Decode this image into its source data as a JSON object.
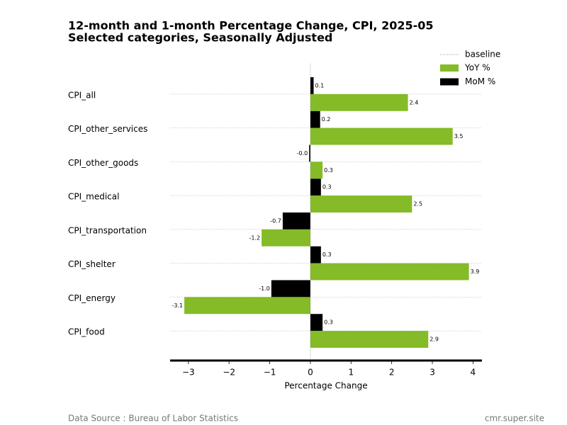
{
  "chart_data": {
    "type": "hbar_grouped",
    "title": "12-month and 1-month Percentage Change, CPI, 2025-05",
    "subtitle": "Selected categories, Seasonally Adjusted",
    "categories": [
      "CPI_all",
      "CPI_other_services",
      "CPI_other_goods",
      "CPI_medical",
      "CPI_transportation",
      "CPI_shelter",
      "CPI_energy",
      "CPI_food"
    ],
    "series": [
      {
        "name": "MoM %",
        "color": "#000000",
        "values": [
          0.08,
          0.24,
          -0.03,
          0.26,
          -0.68,
          0.26,
          -0.96,
          0.3
        ],
        "value_labels": [
          "0.1",
          "0.2",
          "-0.0",
          "0.3",
          "-0.7",
          "0.3",
          "-1.0",
          "0.3"
        ]
      },
      {
        "name": "YoY %",
        "color": "#84bb27",
        "values": [
          2.4,
          3.5,
          0.3,
          2.5,
          -1.2,
          3.9,
          -3.1,
          2.9
        ]
      }
    ],
    "baseline": {
      "label": "baseline",
      "x": 0
    },
    "xlabel": "Percentage Change",
    "xlim": [
      -3.45,
      4.22
    ],
    "xticks": [
      {
        "value": -3,
        "label": "−3"
      },
      {
        "value": -2,
        "label": "−2"
      },
      {
        "value": -1,
        "label": "−1"
      },
      0,
      1,
      2,
      3,
      4
    ],
    "grid": true,
    "legend": "upper right",
    "source": "Data Source : Bureau of Labor Statistics",
    "site": "cmr.super.site"
  }
}
